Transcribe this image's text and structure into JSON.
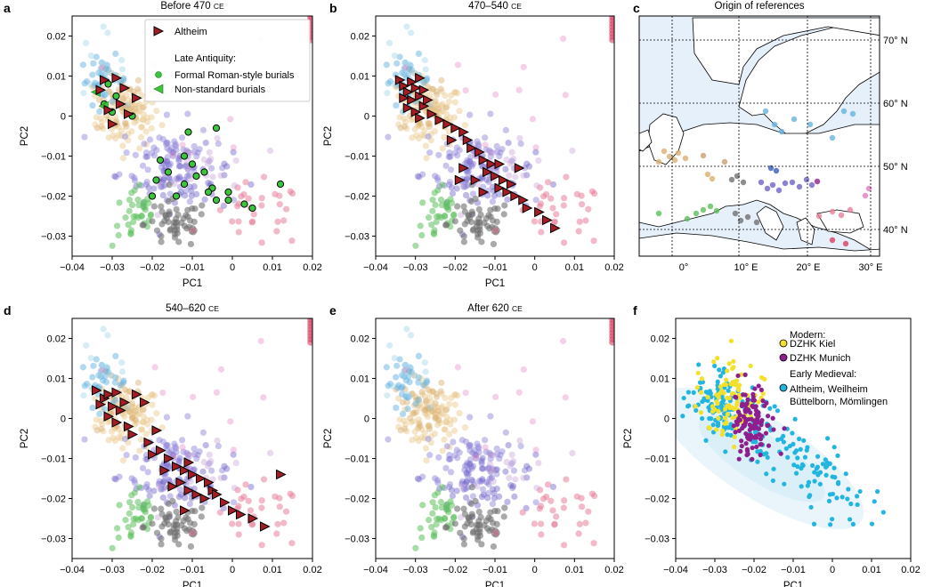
{
  "figure": {
    "panel_labels": [
      "a",
      "b",
      "c",
      "d",
      "e",
      "f"
    ]
  },
  "chart_data": [
    {
      "panel": "a",
      "type": "scatter",
      "title_main": "Before 470",
      "title_era": "CE",
      "xlabel": "PC1",
      "ylabel": "PC2",
      "xlim": [
        -0.04,
        0.02
      ],
      "ylim": [
        -0.035,
        0.025
      ],
      "xticks": [
        "−0.04",
        "−0.03",
        "−0.02",
        "−0.01",
        "0",
        "0.01",
        "0.02"
      ],
      "yticks": [
        "0.02",
        "0.01",
        "0",
        "−0.01",
        "−0.02",
        "−0.03"
      ],
      "legend": {
        "altheim": "Altheim",
        "section": "Late Antiquity:",
        "formal": "Formal Roman-style burials",
        "nonstandard": "Non-standard burials"
      },
      "altheim": [
        [
          -0.032,
          0.009
        ],
        [
          -0.027,
          0.007
        ],
        [
          -0.024,
          0.0045
        ],
        [
          -0.031,
          0.0015
        ],
        [
          -0.028,
          0.003
        ],
        [
          -0.03,
          -0.002
        ],
        [
          -0.029,
          0.0095
        ],
        [
          -0.026,
          0.0005
        ],
        [
          -0.033,
          0.0065
        ]
      ],
      "formal": [
        [
          -0.031,
          0.008
        ],
        [
          -0.029,
          0.005
        ],
        [
          -0.032,
          0.003
        ],
        [
          -0.03,
          0.001
        ],
        [
          -0.025,
          0.0
        ],
        [
          -0.004,
          -0.003
        ],
        [
          -0.011,
          -0.004
        ],
        [
          -0.018,
          -0.011
        ],
        [
          -0.012,
          -0.01
        ],
        [
          -0.01,
          -0.012
        ],
        [
          -0.016,
          -0.014
        ],
        [
          -0.007,
          -0.014
        ],
        [
          -0.019,
          -0.016
        ],
        [
          -0.012,
          -0.017
        ],
        [
          -0.005,
          -0.018
        ],
        [
          -0.001,
          -0.019
        ],
        [
          0.012,
          -0.017
        ],
        [
          -0.006,
          -0.019
        ],
        [
          -0.02,
          -0.02
        ],
        [
          -0.014,
          -0.02
        ],
        [
          -0.004,
          -0.021
        ],
        [
          -0.001,
          -0.021
        ],
        [
          0.003,
          -0.022
        ],
        [
          0.005,
          -0.023
        ],
        [
          -0.009,
          -0.015
        ]
      ],
      "nonstandard": [
        [
          -0.034,
          0.006
        ],
        [
          -0.032,
          0.0025
        ]
      ]
    },
    {
      "panel": "b",
      "type": "scatter",
      "title_main": "470–540",
      "title_era": "CE",
      "xlabel": "PC1",
      "ylabel": "PC2",
      "xlim": [
        -0.04,
        0.02
      ],
      "ylim": [
        -0.035,
        0.025
      ],
      "xticks": [
        "−0.04",
        "−0.03",
        "−0.02",
        "−0.01",
        "0",
        "0.01",
        "0.02"
      ],
      "yticks": [
        "0.02",
        "0.01",
        "0",
        "−0.01",
        "−0.02",
        "−0.03"
      ],
      "altheim": [
        [
          -0.034,
          0.009
        ],
        [
          -0.033,
          0.0075
        ],
        [
          -0.032,
          0.006
        ],
        [
          -0.031,
          0.0085
        ],
        [
          -0.03,
          0.007
        ],
        [
          -0.031,
          0.004
        ],
        [
          -0.029,
          0.005
        ],
        [
          -0.028,
          0.0065
        ],
        [
          -0.032,
          0.002
        ],
        [
          -0.03,
          0.001
        ],
        [
          -0.028,
          0.0025
        ],
        [
          -0.027,
          0.004
        ],
        [
          -0.033,
          0.0045
        ],
        [
          -0.029,
          0.0095
        ],
        [
          -0.026,
          0.0005
        ],
        [
          -0.029,
          -0.0005
        ],
        [
          -0.024,
          -0.001
        ],
        [
          -0.022,
          -0.002
        ],
        [
          -0.02,
          -0.003
        ],
        [
          -0.018,
          -0.004
        ],
        [
          -0.017,
          -0.006
        ],
        [
          -0.021,
          -0.006
        ],
        [
          -0.016,
          -0.008
        ],
        [
          -0.014,
          -0.009
        ],
        [
          -0.013,
          -0.011
        ],
        [
          -0.011,
          -0.012
        ],
        [
          -0.009,
          -0.012
        ],
        [
          -0.012,
          -0.014
        ],
        [
          -0.01,
          -0.015
        ],
        [
          -0.008,
          -0.016
        ],
        [
          -0.006,
          -0.017
        ],
        [
          -0.009,
          -0.018
        ],
        [
          -0.007,
          -0.019
        ],
        [
          -0.005,
          -0.02
        ],
        [
          -0.003,
          -0.021
        ],
        [
          -0.002,
          -0.023
        ],
        [
          0.001,
          -0.024
        ],
        [
          0.003,
          -0.026
        ],
        [
          0.005,
          -0.028
        ],
        [
          -0.013,
          -0.019
        ],
        [
          -0.015,
          -0.016
        ],
        [
          -0.018,
          -0.013
        ],
        [
          -0.019,
          -0.016
        ],
        [
          -0.004,
          -0.013
        ]
      ]
    },
    {
      "panel": "c",
      "type": "scatter",
      "title_main": "540–620",
      "title_era": "CE",
      "xlabel": "PC1",
      "ylabel": "PC2",
      "xlim": [
        -0.04,
        0.02
      ],
      "ylim": [
        -0.035,
        0.025
      ],
      "xticks": [
        "−0.04",
        "−0.03",
        "−0.02",
        "−0.01",
        "0",
        "0.01",
        "0.02"
      ],
      "yticks": [
        "0.02",
        "0.01",
        "0",
        "−0.01",
        "−0.02",
        "−0.03"
      ],
      "altheim": [
        [
          -0.034,
          0.007
        ],
        [
          -0.032,
          0.005
        ],
        [
          -0.031,
          0.006
        ],
        [
          -0.029,
          0.0065
        ],
        [
          -0.027,
          0.004
        ],
        [
          -0.03,
          0.003
        ],
        [
          -0.028,
          0.002
        ],
        [
          -0.033,
          0.0035
        ],
        [
          -0.031,
          0.0005
        ],
        [
          -0.029,
          -0.001
        ],
        [
          -0.026,
          -0.002
        ],
        [
          -0.024,
          0.006
        ],
        [
          -0.022,
          0.004
        ],
        [
          -0.025,
          -0.004
        ],
        [
          -0.021,
          -0.006
        ],
        [
          -0.019,
          -0.003
        ],
        [
          -0.018,
          -0.008
        ],
        [
          -0.016,
          -0.01
        ],
        [
          -0.014,
          -0.012
        ],
        [
          -0.012,
          -0.013
        ],
        [
          -0.011,
          -0.011
        ],
        [
          -0.01,
          -0.014
        ],
        [
          -0.008,
          -0.015
        ],
        [
          -0.006,
          -0.016
        ],
        [
          -0.005,
          -0.018
        ],
        [
          -0.004,
          -0.019
        ],
        [
          -0.002,
          -0.021
        ],
        [
          0.0,
          -0.023
        ],
        [
          0.002,
          -0.024
        ],
        [
          0.005,
          -0.025
        ],
        [
          0.008,
          -0.027
        ],
        [
          0.012,
          -0.014
        ],
        [
          -0.013,
          -0.016
        ],
        [
          -0.011,
          -0.018
        ],
        [
          -0.009,
          -0.019
        ],
        [
          -0.007,
          -0.02
        ],
        [
          -0.012,
          -0.023
        ],
        [
          -0.015,
          -0.017
        ],
        [
          -0.02,
          -0.009
        ],
        [
          -0.017,
          -0.013
        ]
      ]
    },
    {
      "panel": "d",
      "type": "scatter",
      "title_main": "After 620",
      "title_era": "CE",
      "xlabel": "PC1",
      "ylabel": "PC2",
      "xlim": [
        -0.04,
        0.02
      ],
      "ylim": [
        -0.035,
        0.025
      ],
      "xticks": [
        "−0.04",
        "−0.03",
        "−0.02",
        "−0.01",
        "0",
        "0.01",
        "0.02"
      ],
      "yticks": [
        "0.02",
        "0.01",
        "0",
        "−0.01",
        "−0.02",
        "−0.03"
      ],
      "altheim": []
    },
    {
      "panel": "e",
      "type": "map",
      "title": "Origin of references",
      "lat_labels": [
        "70° N",
        "60° N",
        "50° N",
        "40° N"
      ],
      "lon_labels": [
        "0°",
        "10° E",
        "20° E",
        "30° E"
      ]
    },
    {
      "panel": "f",
      "type": "scatter",
      "xlabel": "PC1",
      "ylabel": "PC2",
      "xlim": [
        -0.04,
        0.02
      ],
      "ylim": [
        -0.035,
        0.025
      ],
      "xticks": [
        "−0.04",
        "−0.03",
        "−0.02",
        "−0.01",
        "0",
        "0.01",
        "0.02"
      ],
      "yticks": [
        "0.02",
        "0.01",
        "0",
        "−0.01",
        "−0.02",
        "−0.03"
      ],
      "legend": {
        "modern": "Modern:",
        "kiel": "DZHK Kiel",
        "munich": "DZHK Munich",
        "early": "Early Medieval:",
        "sites_1": "Altheim, Weilheim",
        "sites_2": "Büttelborn, Mömlingen"
      },
      "series_colors": {
        "kiel": "#f2e02a",
        "munich": "#8e1f8e",
        "early": "#22b5e0"
      }
    }
  ],
  "colors": {
    "altheim": "#a51d24",
    "formal": "#3cc43c",
    "nonstandard": "#3cc43c",
    "reference": [
      "#e8c88a",
      "#d9b070",
      "#8a7fd6",
      "#6f63c8",
      "#66b3e0",
      "#9ad3e8",
      "#5cbf5c",
      "#707070",
      "#e8809a",
      "#c69fd8",
      "#e27ac0"
    ]
  }
}
